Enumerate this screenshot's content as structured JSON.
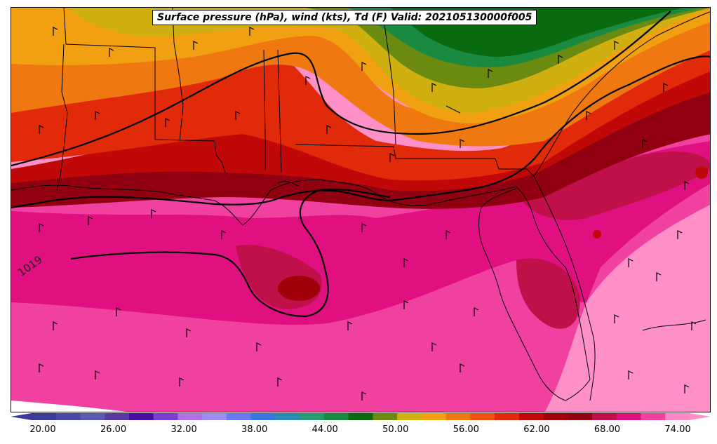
{
  "title": "Surface pressure (hPa), wind (kts), Td (F) Valid: 202105130000f005",
  "isobar_label": "1019",
  "colorbar": {
    "ticks": [
      "20.00",
      "26.00",
      "32.00",
      "38.00",
      "44.00",
      "50.00",
      "56.00",
      "62.00",
      "68.00",
      "74.00"
    ],
    "colors": [
      "#3b3b9a",
      "#4a4aa6",
      "#5a5ab0",
      "#5b3aa0",
      "#4a10a6",
      "#7a3ed0",
      "#b070e8",
      "#9a8cf0",
      "#6a78f2",
      "#3a78e0",
      "#2a8ab0",
      "#2a9a70",
      "#1a8a40",
      "#0a6a10",
      "#6a8a10",
      "#d0b010",
      "#f0a010",
      "#f07810",
      "#f05010",
      "#e02a0a",
      "#c00808",
      "#a0000a",
      "#900010",
      "#c0104a",
      "#e01080",
      "#f040a0",
      "#ff88c8"
    ],
    "min_color": "#3b3b9a",
    "max_color": "#ff90cc"
  },
  "legend_colors": {
    "low_dewpoint": "#0a6a10",
    "mid_dewpoint": "#d0b010",
    "high_dewpoint": "#c00808",
    "very_high_dewpoint": "#e01080",
    "extreme_dewpoint": "#ff90c8"
  }
}
